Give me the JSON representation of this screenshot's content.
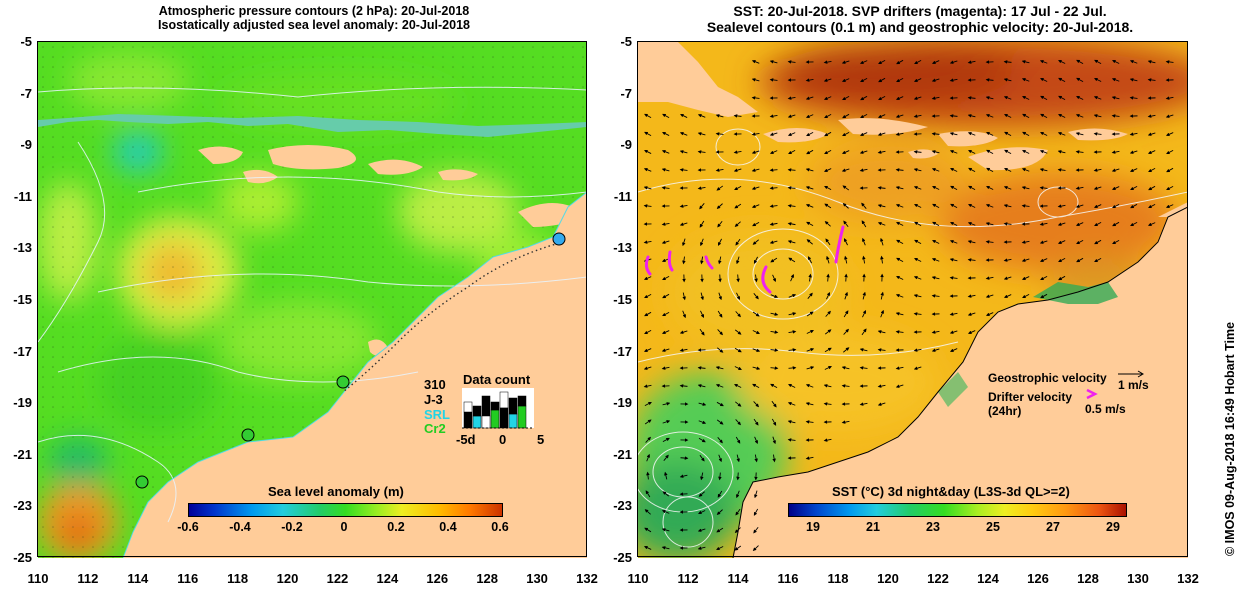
{
  "left_panel": {
    "title_line1": "Atmospheric pressure contours (2 hPa): 20-Jul-2018",
    "title_line2": "Isostatically adjusted sea level anomaly: 20-Jul-2018",
    "colorbar": {
      "title": "Sea level anomaly (m)",
      "ticks": [
        "-0.6",
        "-0.4",
        "-0.2",
        "0",
        "0.2",
        "0.4",
        "0.6"
      ]
    },
    "data_count": {
      "title": "Data count",
      "count": "310",
      "legend": [
        {
          "label": "J-3",
          "color": "#000000"
        },
        {
          "label": "SRL",
          "color": "#22d4e6"
        },
        {
          "label": "Cr2",
          "color": "#22cc22"
        }
      ],
      "axis_ticks": [
        "-5d",
        "0",
        "5"
      ]
    }
  },
  "right_panel": {
    "title_line1": "SST: 20-Jul-2018. SVP drifters (magenta): 17 Jul - 22 Jul.",
    "title_line2": "Sealevel contours (0.1 m) and geostrophic velocity: 20-Jul-2018.",
    "colorbar": {
      "title": "SST (°C) 3d night&day (L3S-3d QL>=2)",
      "ticks": [
        "19",
        "21",
        "23",
        "25",
        "27",
        "29"
      ]
    },
    "legend": {
      "geostrophic_label": "Geostrophic velocity",
      "geostrophic_scale": "1 m/s",
      "drifter_label_1": "Drifter velocity",
      "drifter_label_2": "(24hr)",
      "drifter_scale": "0.5 m/s"
    }
  },
  "axes": {
    "y_ticks": [
      "-5",
      "-7",
      "-9",
      "-11",
      "-13",
      "-15",
      "-17",
      "-19",
      "-21",
      "-23",
      "-25"
    ],
    "x_ticks": [
      "110",
      "112",
      "114",
      "116",
      "118",
      "120",
      "122",
      "124",
      "126",
      "128",
      "130",
      "132"
    ]
  },
  "credit": "© IMOS 09-Aug-2018 16:49 Hobart Time"
}
